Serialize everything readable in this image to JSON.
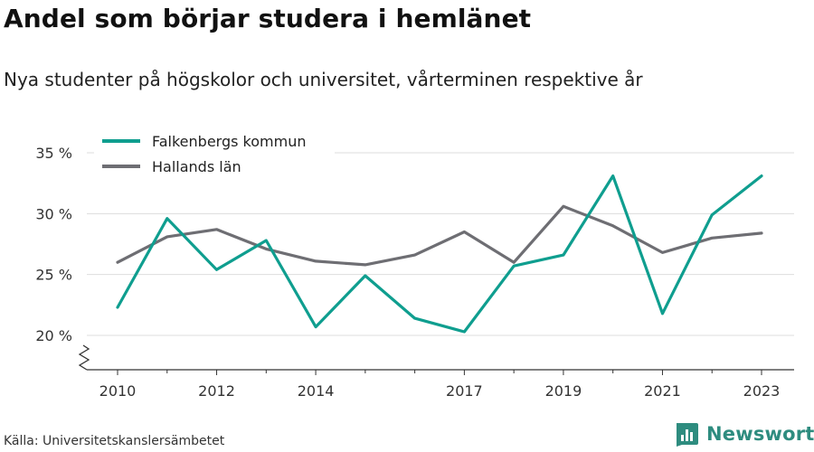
{
  "title": "Andel som börjar studera i hemlänet",
  "subtitle": "Nya studenter på högskolor och universitet, vårterminen respektive år",
  "source": "Källa: Universitetskanslersämbetet",
  "brand": "Newsworthy",
  "colors": {
    "falkenberg": "#0f9e8f",
    "halland": "#6e6e73",
    "brand": "#2e8c7f",
    "grid": "#dddddd",
    "axis": "#333333"
  },
  "chart_data": {
    "type": "line",
    "title": "Andel som börjar studera i hemlänet",
    "subtitle": "Nya studenter på högskolor och universitet, vårterminen respektive år",
    "xlabel": "",
    "ylabel": "",
    "x": [
      2010,
      2011,
      2012,
      2013,
      2014,
      2015,
      2016,
      2017,
      2018,
      2019,
      2020,
      2021,
      2022,
      2023
    ],
    "x_ticks": [
      "2010",
      "2012",
      "2014",
      "2017",
      "2019",
      "2021",
      "2023"
    ],
    "y_ticks": [
      "20 %",
      "25 %",
      "30 %",
      "35 %"
    ],
    "y_tick_values": [
      20,
      25,
      30,
      35
    ],
    "ylim": [
      17.3,
      35
    ],
    "y_axis_break": true,
    "grid": true,
    "legend_position": "top-left",
    "series": [
      {
        "name": "Falkenbergs kommun",
        "color": "#0f9e8f",
        "values": [
          22.3,
          29.6,
          25.4,
          27.8,
          20.7,
          24.9,
          21.4,
          20.3,
          25.7,
          26.6,
          33.1,
          21.8,
          29.9,
          33.1
        ]
      },
      {
        "name": "Hallands län",
        "color": "#6e6e73",
        "values": [
          26.0,
          28.1,
          28.7,
          27.1,
          26.1,
          25.8,
          26.6,
          28.5,
          26.0,
          30.6,
          29.0,
          26.8,
          28.0,
          28.4
        ]
      }
    ]
  }
}
